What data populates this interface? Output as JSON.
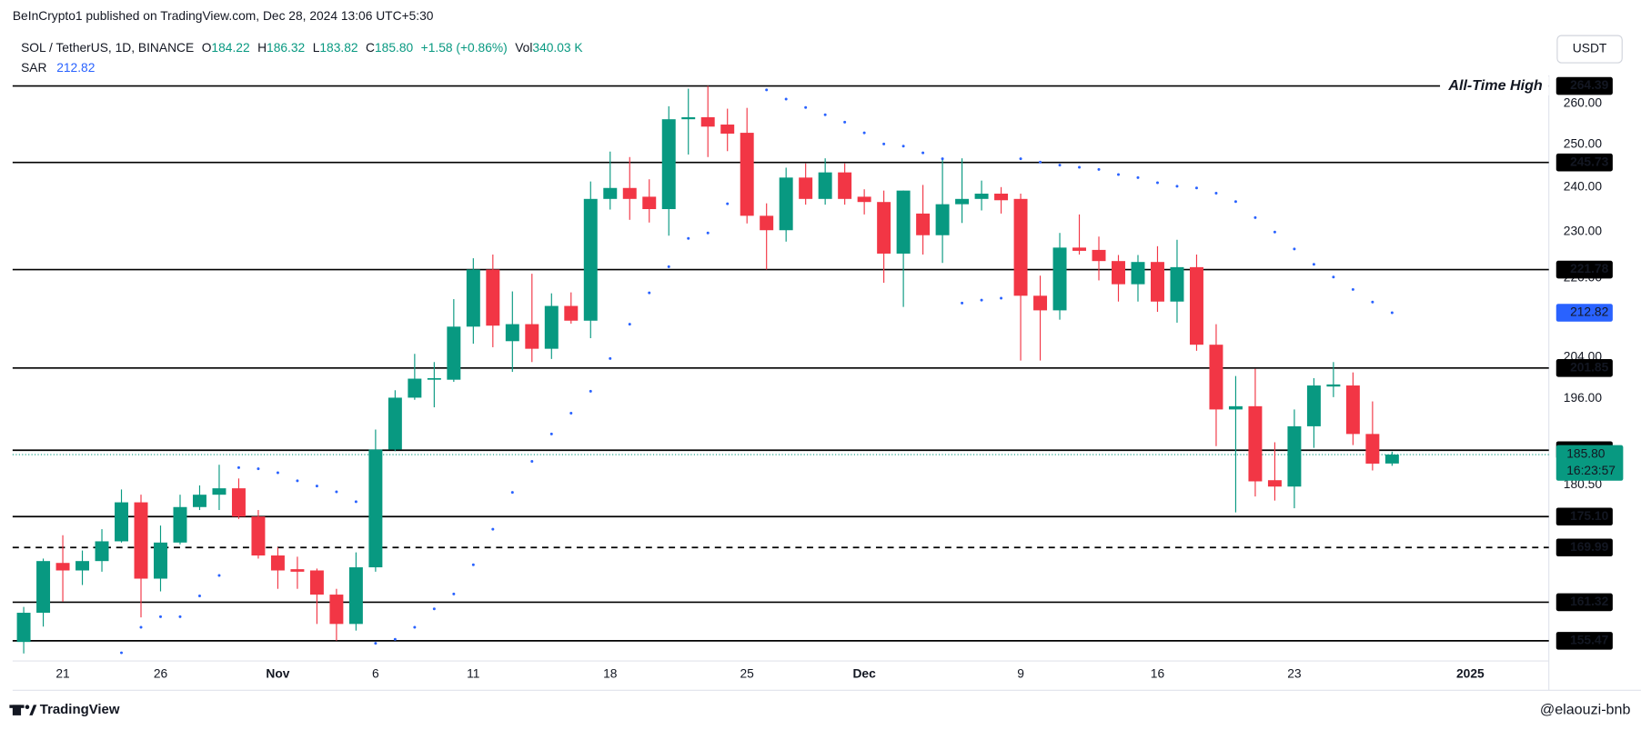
{
  "header": "BeInCrypto1 published on TradingView.com, Dec 28, 2024 13:06 UTC+5:30",
  "footer": "TradingView",
  "watermark": "@elaouzi-bnb",
  "currency_button": "USDT",
  "legend": {
    "symbol": "SOL / TetherUS, 1D, BINANCE",
    "keys": [
      "O",
      "H",
      "L",
      "C"
    ],
    "change": "+1.58 (+0.86%)",
    "volume_key": "Vol",
    "volume": "340.03 K"
  },
  "chart_data": {
    "type": "candlestick",
    "categories": [
      null,
      null,
      "21",
      null,
      null,
      null,
      null,
      "26",
      null,
      null,
      null,
      null,
      null,
      "Nov",
      null,
      null,
      null,
      null,
      "6",
      null,
      null,
      null,
      null,
      "11",
      null,
      null,
      null,
      null,
      null,
      null,
      "18",
      null,
      null,
      null,
      null,
      null,
      null,
      "25",
      null,
      null,
      null,
      null,
      null,
      "Dec",
      null,
      null,
      null,
      null,
      null,
      null,
      null,
      "9",
      null,
      null,
      null,
      null,
      null,
      null,
      "16",
      null,
      null,
      null,
      null,
      null,
      null,
      "23",
      null,
      null,
      null,
      null,
      null,
      null,
      null,
      null,
      "2025"
    ],
    "open": [
      155.3,
      159.7,
      167.5,
      166.3,
      167.8,
      171,
      177.5,
      165,
      170.8,
      176.7,
      178.8,
      179.9,
      175.1,
      168.7,
      166.5,
      166.3,
      162.5,
      158,
      166.8,
      186.7,
      196.2,
      199.6,
      199.6,
      210,
      221.8,
      207.1,
      210.5,
      205.6,
      214.2,
      211.2,
      237.3,
      239.8,
      237.8,
      235,
      256.1,
      256.6,
      254.8,
      252.8,
      233.5,
      230.3,
      242.2,
      237.3,
      243.4,
      237.8,
      236.6,
      225.2,
      234,
      229.2,
      236.1,
      237.3,
      238.5,
      237.3,
      216.3,
      213.3,
      226.5,
      226,
      223.6,
      218.7,
      223.4,
      215.1,
      222.3,
      206.4,
      194,
      194.6,
      181.3,
      180.2,
      190.9,
      198.3,
      198.5,
      189.5,
      184.22,
      null,
      null,
      null,
      null
    ],
    "high": [
      160.6,
      168.2,
      172,
      169.5,
      173,
      179.7,
      178.8,
      173.6,
      178.8,
      180.4,
      184,
      181.6,
      176.2,
      170,
      168.5,
      166.6,
      163.4,
      169.2,
      190.3,
      197.6,
      204.6,
      203,
      215.6,
      224.2,
      225,
      217.2,
      220.9,
      216.8,
      217,
      241.3,
      248.3,
      247,
      241.8,
      259.3,
      263.7,
      264.39,
      258.7,
      258.9,
      236.3,
      244.5,
      245.5,
      246.7,
      245.5,
      239.5,
      239.2,
      239.2,
      240.5,
      246.7,
      246.7,
      241.5,
      240,
      238.5,
      220.5,
      229.7,
      233.8,
      228.9,
      224.9,
      224.9,
      226.8,
      228.2,
      225,
      210.5,
      200.3,
      201.7,
      188,
      194,
      199.9,
      203,
      201,
      195.5,
      186.32,
      null,
      null,
      null,
      null
    ],
    "low": [
      153.6,
      157.6,
      161.4,
      164,
      166.1,
      170.8,
      159,
      163,
      170.5,
      176.2,
      176.2,
      174.7,
      168.2,
      163.4,
      163.4,
      158,
      155.5,
      157,
      166.1,
      186.4,
      195.8,
      194.4,
      199.2,
      206.6,
      205.9,
      201.1,
      203,
      203.6,
      210.6,
      207.7,
      234.9,
      232.6,
      232,
      229.1,
      247.6,
      247,
      248.4,
      231.8,
      221.8,
      227.8,
      236,
      236,
      236,
      233.8,
      219,
      214,
      225,
      223.2,
      231.9,
      234.7,
      234,
      203.3,
      203.3,
      211.4,
      225,
      219.5,
      215.1,
      215.1,
      213,
      210.8,
      205.2,
      187.3,
      175.8,
      178.5,
      177.8,
      176.5,
      187,
      196.3,
      187.5,
      183,
      183.82,
      null,
      null,
      null,
      null
    ],
    "close": [
      159.7,
      167.8,
      166.3,
      167.8,
      171,
      177.5,
      165,
      170.8,
      176.7,
      178.8,
      179.9,
      175.1,
      168.7,
      166.3,
      166.1,
      162.5,
      158,
      166.8,
      186.7,
      196.2,
      199.8,
      199.9,
      210,
      221.8,
      210.2,
      210.5,
      205.6,
      214.2,
      211.2,
      237.3,
      239.8,
      237.3,
      235,
      256.1,
      256.6,
      254.3,
      252.6,
      233.5,
      230.3,
      242.2,
      237.3,
      243.4,
      237.3,
      236.6,
      225.2,
      239.2,
      229.2,
      236.1,
      237.3,
      238.5,
      237,
      216.3,
      213.3,
      226.5,
      225.8,
      223.6,
      218.7,
      223.4,
      215.1,
      222.3,
      206.4,
      194,
      194.6,
      181.1,
      180.2,
      190.9,
      198.5,
      198.7,
      189.5,
      184.2,
      185.8,
      null,
      null,
      null,
      null
    ],
    "up_color": "#089981",
    "down_color": "#f23645",
    "indicator": {
      "name": "SAR",
      "color": "#2962ff",
      "values": [
        null,
        null,
        null,
        null,
        null,
        153.7,
        157.5,
        159.1,
        159.1,
        162.3,
        165.5,
        183.5,
        183.3,
        182.6,
        181.2,
        180.3,
        179.3,
        177.6,
        155.1,
        155.7,
        157.5,
        160.3,
        162.6,
        167.2,
        173,
        179.2,
        184.6,
        189.5,
        193.3,
        197.4,
        203.7,
        210.5,
        216.9,
        222.4,
        228.5,
        229.7,
        236.2,
        null,
        263.4,
        261.1,
        259,
        257.2,
        255.4,
        252.8,
        250.1,
        249.6,
        248,
        246.6,
        214.8,
        215.4,
        215.8,
        246.6,
        245.8,
        245.1,
        244.6,
        244.1,
        242.9,
        242.2,
        241,
        240.2,
        239.8,
        238.6,
        236.7,
        233.1,
        229.9,
        226.2,
        222.9,
        220.2,
        217.6,
        215,
        212.82,
        null,
        null,
        null,
        null
      ]
    },
    "log_scale": true,
    "ylim": [
      152.5,
      267.1
    ],
    "yticks": [
      {
        "value": 260,
        "label": "260.00"
      },
      {
        "value": 250,
        "label": "250.00"
      },
      {
        "value": 240,
        "label": "240.00"
      },
      {
        "value": 230,
        "label": "230.00"
      },
      {
        "value": 220,
        "label": "220.00"
      },
      {
        "value": 204,
        "label": "204.00"
      },
      {
        "value": 196,
        "label": "196.00"
      },
      {
        "value": 180.5,
        "label": "180.50"
      }
    ],
    "grid": false,
    "levels": [
      {
        "value": 264.39
      },
      {
        "value": 245.73
      },
      {
        "value": 221.78
      },
      {
        "value": 201.85
      },
      {
        "value": 186.57
      },
      {
        "value": 175.1,
        "label": "175.10"
      },
      {
        "value": 169.99,
        "dashed": true
      },
      {
        "value": 161.32
      },
      {
        "value": 155.47
      }
    ],
    "annotation": "All-Time High",
    "current_price": {
      "value": 185.8,
      "label": "185.80",
      "countdown": "16:23:57"
    }
  }
}
